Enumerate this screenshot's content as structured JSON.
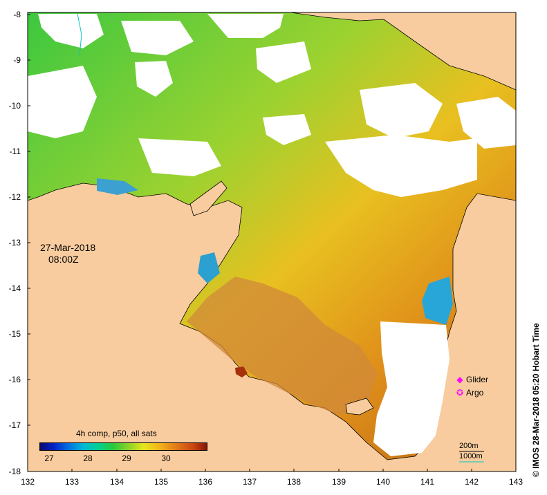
{
  "map": {
    "latitude_ticks": [
      "-8",
      "-9",
      "-10",
      "-11",
      "-12",
      "-13",
      "-14",
      "-15",
      "-16",
      "-17",
      "-18"
    ],
    "longitude_ticks": [
      "132",
      "133",
      "134",
      "135",
      "136",
      "137",
      "138",
      "139",
      "140",
      "141",
      "142",
      "143"
    ],
    "colors": {
      "land": "#f8cc9e",
      "no_data": "#ffffff",
      "coast": "#000000"
    }
  },
  "timestamp": {
    "date": "27-Mar-2018",
    "time": "08:00Z"
  },
  "colorbar": {
    "title": "4h comp, p50, all sats",
    "ticks": [
      "27",
      "28",
      "29",
      "30"
    ]
  },
  "legend": [
    {
      "label": "Glider",
      "icon": "diamond-icon",
      "color": "#ff00ff"
    },
    {
      "label": "Argo",
      "icon": "circle-icon",
      "color": "#ff00ff"
    }
  ],
  "scale": {
    "depth_200": "200m",
    "depth_1000": "1000m"
  },
  "credit": "© IMOS 28-Mar-2018 05:20 Hobart Time"
}
